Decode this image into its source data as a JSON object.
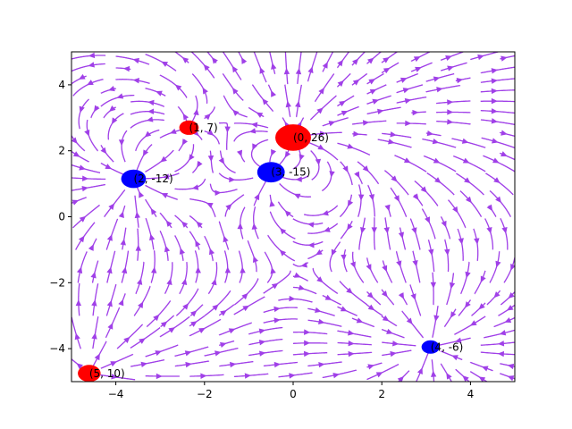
{
  "chart_data": {
    "type": "scatter",
    "subtype": "electric-field-streamplot",
    "title": "",
    "xlabel": "",
    "ylabel": "",
    "xlim": [
      -5,
      5
    ],
    "ylim": [
      -5,
      5
    ],
    "x_ticks": [
      -4,
      -2,
      0,
      2,
      4
    ],
    "y_ticks": [
      -4,
      -2,
      0,
      2,
      4
    ],
    "x_tick_labels": [
      "−4",
      "−2",
      "0",
      "2",
      "4"
    ],
    "y_tick_labels": [
      "−4",
      "−2",
      "0",
      "2",
      "4"
    ],
    "grid": false,
    "legend": "none",
    "colors": {
      "streamline": "#a040e8",
      "positive_charge": "#ff0000",
      "negative_charge": "#0000ff",
      "axis": "#000000"
    },
    "charges": [
      {
        "label": "(0, 26)",
        "x": 0.0,
        "y": 2.4,
        "q": 26
      },
      {
        "label": "(3, -15)",
        "x": -0.5,
        "y": 1.35,
        "q": -15
      },
      {
        "label": "(1, 7)",
        "x": -2.35,
        "y": 2.7,
        "q": 7
      },
      {
        "label": "(2, -12)",
        "x": -3.6,
        "y": 1.15,
        "q": -12
      },
      {
        "label": "(4, -6)",
        "x": 3.1,
        "y": -3.95,
        "q": -6
      },
      {
        "label": "(5, 10)",
        "x": -4.6,
        "y": -4.75,
        "q": 10
      }
    ]
  }
}
